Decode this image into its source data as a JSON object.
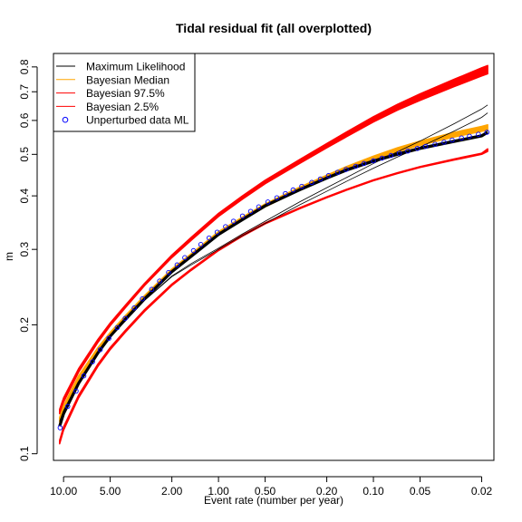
{
  "chart_data": {
    "type": "line",
    "title": "Tidal residual fit (all overplotted)",
    "xlabel": "Event rate (number per year)",
    "ylabel": "m",
    "x_scale": "log",
    "x_reversed": true,
    "y_scale": "log",
    "xlim": [
      11.62,
      0.01668
    ],
    "ylim": [
      0.0965,
      0.86
    ],
    "x_ticks": [
      {
        "value": 10,
        "label": "10.00"
      },
      {
        "value": 5,
        "label": "5.00"
      },
      {
        "value": 2,
        "label": "2.00"
      },
      {
        "value": 1,
        "label": "1.00"
      },
      {
        "value": 0.5,
        "label": "0.50"
      },
      {
        "value": 0.2,
        "label": "0.20"
      },
      {
        "value": 0.1,
        "label": "0.10"
      },
      {
        "value": 0.05,
        "label": "0.05"
      },
      {
        "value": 0.02,
        "label": "0.02"
      }
    ],
    "y_ticks": [
      {
        "value": 0.1,
        "label": "0.1"
      },
      {
        "value": 0.2,
        "label": "0.2"
      },
      {
        "value": 0.3,
        "label": "0.3"
      },
      {
        "value": 0.4,
        "label": "0.4"
      },
      {
        "value": 0.5,
        "label": "0.5"
      },
      {
        "value": 0.6,
        "label": "0.6"
      },
      {
        "value": 0.7,
        "label": "0.7"
      },
      {
        "value": 0.8,
        "label": "0.8"
      }
    ],
    "legend_position": "top-left",
    "series": [
      {
        "name": "Maximum Likelihood",
        "color": "#000000",
        "style": "line",
        "x": [
          10.6,
          10,
          8,
          6,
          5,
          4,
          3,
          2,
          1.5,
          1,
          0.7,
          0.5,
          0.3,
          0.2,
          0.15,
          0.1,
          0.07,
          0.05,
          0.03,
          0.02,
          0.0183
        ],
        "y": [
          0.116,
          0.124,
          0.146,
          0.172,
          0.188,
          0.206,
          0.23,
          0.266,
          0.289,
          0.325,
          0.352,
          0.379,
          0.413,
          0.44,
          0.459,
          0.482,
          0.5,
          0.516,
          0.536,
          0.552,
          0.563
        ]
      },
      {
        "name": "Maximum Likelihood (alternate fits)",
        "color": "#000000",
        "style": "line",
        "lines": [
          {
            "x": [
              10.6,
              10,
              8,
              6,
              5,
              4,
              3,
              2,
              1.5,
              1,
              0.7,
              0.5,
              0.3,
              0.2,
              0.15,
              0.1,
              0.07,
              0.05,
              0.03,
              0.02,
              0.0183
            ],
            "y": [
              0.119,
              0.126,
              0.147,
              0.172,
              0.187,
              0.204,
              0.228,
              0.259,
              0.276,
              0.3,
              0.323,
              0.345,
              0.381,
              0.41,
              0.432,
              0.464,
              0.493,
              0.52,
              0.567,
              0.61,
              0.625
            ]
          },
          {
            "x": [
              10.6,
              10,
              8,
              6,
              5,
              4,
              3,
              2,
              1.5,
              1,
              0.7,
              0.5,
              0.3,
              0.2,
              0.15,
              0.1,
              0.07,
              0.05,
              0.03,
              0.02,
              0.0183
            ],
            "y": [
              0.119,
              0.126,
              0.147,
              0.172,
              0.187,
              0.204,
              0.228,
              0.26,
              0.278,
              0.302,
              0.326,
              0.349,
              0.387,
              0.418,
              0.441,
              0.476,
              0.507,
              0.537,
              0.59,
              0.638,
              0.652
            ]
          }
        ]
      },
      {
        "name": "Bayesian Median",
        "color": "#FFA500",
        "style": "band",
        "x": [
          10.6,
          10,
          8,
          6,
          5,
          4,
          3,
          2,
          1.5,
          1,
          0.7,
          0.5,
          0.3,
          0.2,
          0.15,
          0.1,
          0.07,
          0.05,
          0.03,
          0.02,
          0.0183
        ],
        "y_low": [
          0.1185,
          0.1265,
          0.149,
          0.174,
          0.189,
          0.207,
          0.231,
          0.266,
          0.289,
          0.325,
          0.351,
          0.377,
          0.412,
          0.439,
          0.459,
          0.485,
          0.507,
          0.525,
          0.549,
          0.566,
          0.57
        ],
        "y_high": [
          0.1215,
          0.1295,
          0.152,
          0.177,
          0.192,
          0.21,
          0.234,
          0.27,
          0.293,
          0.33,
          0.357,
          0.383,
          0.419,
          0.447,
          0.468,
          0.495,
          0.518,
          0.537,
          0.563,
          0.581,
          0.586
        ]
      },
      {
        "name": "Bayesian 97.5%",
        "color": "#FF0000",
        "style": "band",
        "x": [
          10.6,
          10,
          8,
          6,
          5,
          4,
          3,
          2,
          1.5,
          1,
          0.7,
          0.5,
          0.3,
          0.2,
          0.15,
          0.1,
          0.07,
          0.05,
          0.03,
          0.02,
          0.0183
        ],
        "y_low": [
          0.124,
          0.132,
          0.155,
          0.182,
          0.199,
          0.219,
          0.247,
          0.287,
          0.315,
          0.358,
          0.393,
          0.427,
          0.476,
          0.518,
          0.549,
          0.595,
          0.634,
          0.668,
          0.72,
          0.762,
          0.771
        ],
        "y_high": [
          0.127,
          0.135,
          0.158,
          0.185,
          0.202,
          0.222,
          0.25,
          0.291,
          0.32,
          0.364,
          0.4,
          0.435,
          0.486,
          0.53,
          0.563,
          0.612,
          0.654,
          0.692,
          0.749,
          0.796,
          0.806
        ]
      },
      {
        "name": "Bayesian 2.5%",
        "color": "#FF0000",
        "style": "band",
        "x": [
          10.6,
          10,
          8,
          6,
          5,
          4,
          3,
          2,
          1.5,
          1,
          0.7,
          0.5,
          0.3,
          0.2,
          0.15,
          0.1,
          0.07,
          0.05,
          0.03,
          0.02,
          0.0183
        ],
        "y_low": [
          0.1055,
          0.1135,
          0.135,
          0.16,
          0.175,
          0.192,
          0.215,
          0.247,
          0.268,
          0.298,
          0.322,
          0.344,
          0.373,
          0.396,
          0.412,
          0.434,
          0.451,
          0.466,
          0.485,
          0.5,
          0.508
        ],
        "y_high": [
          0.1075,
          0.1155,
          0.137,
          0.162,
          0.177,
          0.194,
          0.217,
          0.249,
          0.27,
          0.3,
          0.324,
          0.346,
          0.375,
          0.398,
          0.414,
          0.436,
          0.453,
          0.468,
          0.488,
          0.503,
          0.515
        ]
      },
      {
        "name": "Unperturbed data ML",
        "color": "#0000FF",
        "style": "points",
        "x": [
          10.52,
          9.4,
          8.3,
          7.4,
          6.5,
          5.8,
          5.1,
          4.5,
          4.0,
          3.5,
          3.1,
          2.7,
          2.4,
          2.1,
          1.85,
          1.65,
          1.45,
          1.3,
          1.15,
          1.02,
          0.9,
          0.8,
          0.7,
          0.62,
          0.55,
          0.48,
          0.42,
          0.37,
          0.33,
          0.29,
          0.25,
          0.22,
          0.195,
          0.17,
          0.15,
          0.13,
          0.115,
          0.1,
          0.088,
          0.077,
          0.068,
          0.06,
          0.052,
          0.046,
          0.04,
          0.035,
          0.031,
          0.027,
          0.024,
          0.021,
          0.0185
        ],
        "y": [
          0.115,
          0.129,
          0.14,
          0.152,
          0.164,
          0.175,
          0.186,
          0.197,
          0.207,
          0.219,
          0.23,
          0.242,
          0.253,
          0.265,
          0.276,
          0.287,
          0.298,
          0.308,
          0.319,
          0.329,
          0.339,
          0.349,
          0.359,
          0.368,
          0.377,
          0.387,
          0.396,
          0.405,
          0.413,
          0.421,
          0.43,
          0.438,
          0.446,
          0.454,
          0.461,
          0.469,
          0.476,
          0.483,
          0.49,
          0.497,
          0.503,
          0.509,
          0.516,
          0.522,
          0.528,
          0.534,
          0.54,
          0.546,
          0.551,
          0.557,
          0.563
        ]
      }
    ]
  }
}
